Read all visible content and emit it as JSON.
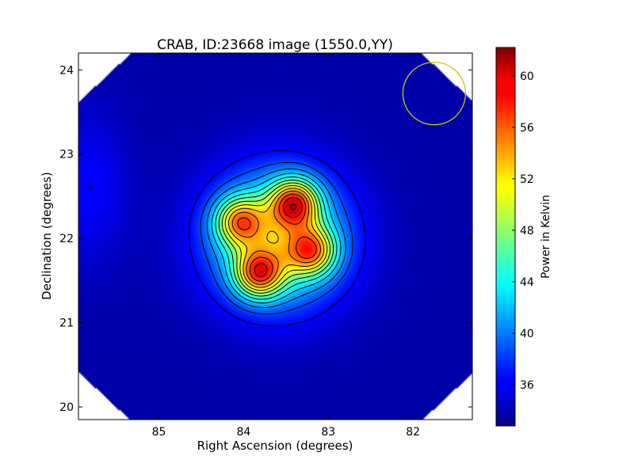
{
  "chart_data": {
    "type": "heatmap",
    "title": "CRAB, ID:23668 image (1550.0,YY)",
    "xlabel": "Right Ascension (degrees)",
    "ylabel": "Declination (degrees)",
    "xlim": [
      85.95,
      81.3
    ],
    "ylim": [
      19.85,
      24.2
    ],
    "x_inverted": true,
    "xticks": [
      85,
      84,
      83,
      82
    ],
    "xtick_labels": [
      "85",
      "84",
      "83",
      "82"
    ],
    "yticks": [
      20,
      21,
      22,
      23,
      24
    ],
    "ytick_labels": [
      "20",
      "21",
      "22",
      "23",
      "24"
    ],
    "colorbar": {
      "label": "Power in Kelvin",
      "range": [
        32.8,
        62.2
      ],
      "ticks": [
        36,
        40,
        44,
        48,
        52,
        56,
        60
      ],
      "tick_labels": [
        "36",
        "40",
        "44",
        "48",
        "52",
        "56",
        "60"
      ],
      "colormap": "jet"
    },
    "peaks": [
      {
        "ra": 83.4,
        "dec": 22.42,
        "value": 62
      },
      {
        "ra": 83.82,
        "dec": 21.58,
        "value": 61
      },
      {
        "ra": 84.05,
        "dec": 22.2,
        "value": 59
      },
      {
        "ra": 83.2,
        "dec": 21.85,
        "value": 59
      }
    ],
    "background_level": 34,
    "beam": {
      "ra": 81.75,
      "dec": 23.72,
      "radius_deg": 0.37,
      "color": "#c8c800"
    },
    "grid": false,
    "contours": true
  }
}
